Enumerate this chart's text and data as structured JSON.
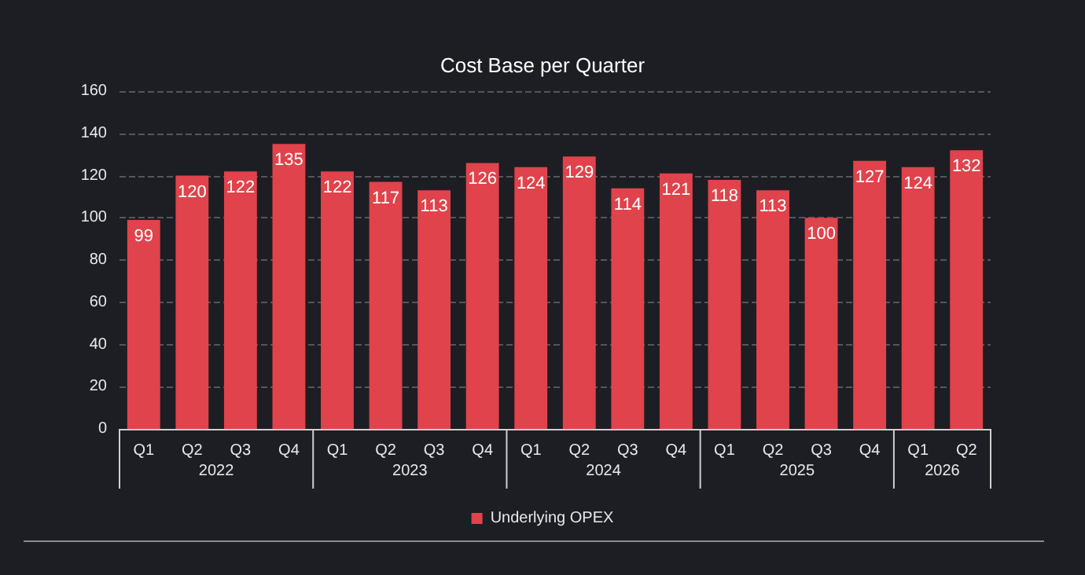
{
  "chart_data": {
    "type": "bar",
    "title": "Cost Base per Quarter",
    "categories": [
      "Q1",
      "Q2",
      "Q3",
      "Q4",
      "Q1",
      "Q2",
      "Q3",
      "Q4",
      "Q1",
      "Q2",
      "Q3",
      "Q4",
      "Q1",
      "Q2",
      "Q3",
      "Q4",
      "Q1",
      "Q2"
    ],
    "series": [
      {
        "name": "Underlying OPEX",
        "color": "#e0434b",
        "values": [
          99,
          120,
          122,
          135,
          122,
          117,
          113,
          126,
          124,
          129,
          114,
          121,
          118,
          113,
          100,
          127,
          124,
          132
        ]
      }
    ],
    "annotations": [
      "2022",
      "2023",
      "2024",
      "2025",
      "2026"
    ],
    "ylim": [
      0,
      160
    ],
    "yticks": [
      0,
      20,
      40,
      60,
      80,
      100,
      120,
      140,
      160
    ],
    "grid": "y",
    "legend": "bottom",
    "data_labels": true
  }
}
